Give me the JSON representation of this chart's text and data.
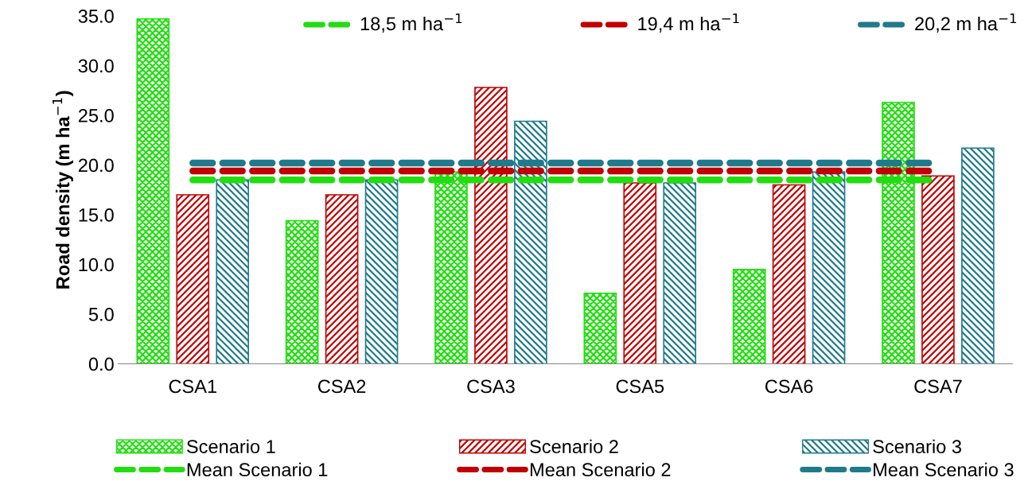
{
  "chart_data": {
    "type": "bar",
    "ylabel": "Road density (m ha$^{−1}$)",
    "categories": [
      "CSA1",
      "CSA2",
      "CSA3",
      "CSA5",
      "CSA6",
      "CSA7"
    ],
    "series": [
      {
        "name": "Scenario 1",
        "color": "#22dd11",
        "values": [
          34.7,
          14.4,
          19.3,
          7.1,
          9.5,
          26.3
        ]
      },
      {
        "name": "Scenario 2",
        "color": "#c00000",
        "values": [
          17.0,
          17.0,
          27.8,
          18.2,
          18.0,
          18.9
        ]
      },
      {
        "name": "Scenario 3",
        "color": "#1f7a8c",
        "values": [
          18.5,
          18.5,
          24.4,
          18.2,
          19.3,
          21.7
        ]
      },
      {
        "name": "Mean Scenario 1",
        "type": "line",
        "line_style": "dashed",
        "color": "#22dd11",
        "values": [
          18.5,
          18.5,
          18.5,
          18.5,
          18.5,
          18.5
        ]
      },
      {
        "name": "Mean Scenario 2",
        "type": "line",
        "line_style": "dashed",
        "color": "#c00000",
        "values": [
          19.4,
          19.4,
          19.4,
          19.4,
          19.4,
          19.4
        ]
      },
      {
        "name": "Mean Scenario 3",
        "type": "line",
        "line_style": "dashed",
        "color": "#1f7a8c",
        "values": [
          20.2,
          20.2,
          20.2,
          20.2,
          20.2,
          20.2
        ]
      }
    ],
    "annotations": [
      "18,5 m ha$^{−1}$",
      "19,4 m ha$^{−1}$",
      "20,2 m ha$^{−1}$"
    ],
    "ylim": [
      0,
      35
    ],
    "yticks": [
      {
        "value": 0,
        "label": "0.0"
      },
      {
        "value": 5,
        "label": "5.0"
      },
      {
        "value": 10,
        "label": "10.0"
      },
      {
        "value": 15,
        "label": "15.0"
      },
      {
        "value": 20,
        "label": "20.0"
      },
      {
        "value": 25,
        "label": "25.0"
      },
      {
        "value": 30,
        "label": "30.0"
      },
      {
        "value": 35,
        "label": "35.0"
      }
    ],
    "grid": false,
    "legend": "bottom",
    "marker": "none"
  }
}
